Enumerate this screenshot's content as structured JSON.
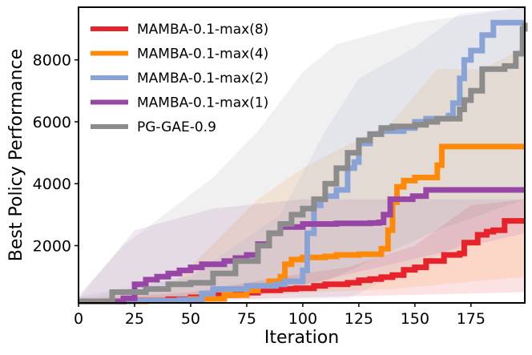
{
  "chart_data": {
    "type": "line",
    "title": "",
    "xlabel": "Iteration",
    "ylabel": "Best Policy Performance",
    "xlim": [
      0,
      199
    ],
    "ylim": [
      150,
      9700
    ],
    "xticks": [
      0,
      25,
      50,
      75,
      100,
      125,
      150,
      175
    ],
    "yticks": [
      2000,
      4000,
      6000,
      8000
    ],
    "grid": false,
    "legend": "top-left",
    "series": [
      {
        "name": "MAMBA-0.1-max(8)",
        "color": "#e6222a",
        "points": [
          [
            0,
            200
          ],
          [
            20,
            230
          ],
          [
            40,
            270
          ],
          [
            50,
            330
          ],
          [
            60,
            400
          ],
          [
            70,
            480
          ],
          [
            80,
            560
          ],
          [
            90,
            600
          ],
          [
            97,
            620
          ],
          [
            105,
            700
          ],
          [
            110,
            750
          ],
          [
            120,
            800
          ],
          [
            125,
            880
          ],
          [
            130,
            920
          ],
          [
            135,
            980
          ],
          [
            140,
            1050
          ],
          [
            145,
            1220
          ],
          [
            150,
            1300
          ],
          [
            155,
            1500
          ],
          [
            160,
            1500
          ],
          [
            163,
            1700
          ],
          [
            170,
            1750
          ],
          [
            172,
            2100
          ],
          [
            178,
            2350
          ],
          [
            182,
            2450
          ],
          [
            185,
            2500
          ],
          [
            190,
            2800
          ],
          [
            199,
            2800
          ]
        ],
        "band_upper": [
          [
            0,
            250
          ],
          [
            50,
            500
          ],
          [
            100,
            1100
          ],
          [
            120,
            1300
          ],
          [
            150,
            2000
          ],
          [
            175,
            3300
          ],
          [
            199,
            3500
          ]
        ],
        "band_lower": [
          [
            0,
            150
          ],
          [
            199,
            500
          ]
        ]
      },
      {
        "name": "MAMBA-0.1-max(4)",
        "color": "#ff8a0a",
        "points": [
          [
            0,
            200
          ],
          [
            30,
            220
          ],
          [
            50,
            280
          ],
          [
            65,
            400
          ],
          [
            75,
            550
          ],
          [
            80,
            700
          ],
          [
            85,
            850
          ],
          [
            90,
            1000
          ],
          [
            92,
            1400
          ],
          [
            95,
            1550
          ],
          [
            100,
            1620
          ],
          [
            110,
            1650
          ],
          [
            115,
            1700
          ],
          [
            125,
            1720
          ],
          [
            135,
            1900
          ],
          [
            138,
            2500
          ],
          [
            140,
            3400
          ],
          [
            142,
            3900
          ],
          [
            145,
            4100
          ],
          [
            150,
            4200
          ],
          [
            158,
            4200
          ],
          [
            160,
            4600
          ],
          [
            162,
            5200
          ],
          [
            199,
            5200
          ]
        ],
        "band_upper": [
          [
            0,
            300
          ],
          [
            40,
            600
          ],
          [
            80,
            3500
          ],
          [
            100,
            4500
          ],
          [
            140,
            6000
          ],
          [
            160,
            7700
          ],
          [
            180,
            7700
          ],
          [
            199,
            8400
          ]
        ],
        "band_lower": [
          [
            0,
            150
          ],
          [
            140,
            600
          ],
          [
            199,
            1000
          ]
        ]
      },
      {
        "name": "MAMBA-0.1-max(2)",
        "color": "#8aa3d6",
        "points": [
          [
            0,
            200
          ],
          [
            25,
            220
          ],
          [
            45,
            250
          ],
          [
            55,
            450
          ],
          [
            60,
            600
          ],
          [
            75,
            700
          ],
          [
            88,
            750
          ],
          [
            92,
            850
          ],
          [
            100,
            1200
          ],
          [
            102,
            2400
          ],
          [
            105,
            3300
          ],
          [
            108,
            3500
          ],
          [
            110,
            3600
          ],
          [
            115,
            3800
          ],
          [
            120,
            4500
          ],
          [
            123,
            4700
          ],
          [
            125,
            5300
          ],
          [
            130,
            5600
          ],
          [
            135,
            5700
          ],
          [
            145,
            5800
          ],
          [
            150,
            6000
          ],
          [
            155,
            6100
          ],
          [
            165,
            6200
          ],
          [
            167,
            6600
          ],
          [
            170,
            7400
          ],
          [
            172,
            8000
          ],
          [
            175,
            8300
          ],
          [
            180,
            8800
          ],
          [
            185,
            9200
          ],
          [
            199,
            9200
          ]
        ],
        "band_upper": [
          [
            0,
            350
          ],
          [
            50,
            1000
          ],
          [
            90,
            3000
          ],
          [
            110,
            5700
          ],
          [
            125,
            7400
          ],
          [
            150,
            8400
          ],
          [
            170,
            9500
          ],
          [
            199,
            9700
          ]
        ],
        "band_lower": [
          [
            0,
            150
          ],
          [
            120,
            300
          ],
          [
            199,
            3000
          ]
        ]
      },
      {
        "name": "MAMBA-0.1-max(1)",
        "color": "#9846a6",
        "points": [
          [
            0,
            200
          ],
          [
            20,
            300
          ],
          [
            25,
            750
          ],
          [
            30,
            900
          ],
          [
            35,
            1000
          ],
          [
            40,
            1100
          ],
          [
            45,
            1200
          ],
          [
            50,
            1300
          ],
          [
            55,
            1400
          ],
          [
            65,
            1500
          ],
          [
            70,
            1600
          ],
          [
            75,
            1700
          ],
          [
            80,
            2050
          ],
          [
            85,
            2400
          ],
          [
            90,
            2600
          ],
          [
            100,
            2700
          ],
          [
            115,
            2720
          ],
          [
            130,
            2730
          ],
          [
            134,
            2750
          ],
          [
            136,
            3000
          ],
          [
            139,
            3500
          ],
          [
            145,
            3500
          ],
          [
            149,
            3600
          ],
          [
            155,
            3800
          ],
          [
            199,
            3800
          ]
        ],
        "band_upper": [
          [
            0,
            300
          ],
          [
            25,
            2500
          ],
          [
            60,
            3200
          ],
          [
            100,
            3500
          ],
          [
            199,
            3500
          ]
        ],
        "band_lower": [
          [
            0,
            150
          ],
          [
            80,
            400
          ],
          [
            199,
            2400
          ]
        ]
      },
      {
        "name": "PG-GAE-0.9",
        "color": "#8c8c8c",
        "points": [
          [
            0,
            200
          ],
          [
            15,
            500
          ],
          [
            30,
            600
          ],
          [
            40,
            750
          ],
          [
            50,
            800
          ],
          [
            60,
            1100
          ],
          [
            70,
            1500
          ],
          [
            80,
            2000
          ],
          [
            85,
            2400
          ],
          [
            90,
            2700
          ],
          [
            95,
            3000
          ],
          [
            100,
            3200
          ],
          [
            105,
            3500
          ],
          [
            110,
            4000
          ],
          [
            115,
            4500
          ],
          [
            120,
            5000
          ],
          [
            125,
            5400
          ],
          [
            130,
            5600
          ],
          [
            135,
            5800
          ],
          [
            140,
            5850
          ],
          [
            150,
            5900
          ],
          [
            155,
            6000
          ],
          [
            160,
            6100
          ],
          [
            170,
            6400
          ],
          [
            172,
            6700
          ],
          [
            175,
            7000
          ],
          [
            180,
            7700
          ],
          [
            190,
            7800
          ],
          [
            195,
            8200
          ],
          [
            198,
            9000
          ],
          [
            199,
            9200
          ]
        ],
        "band_upper": [
          [
            0,
            400
          ],
          [
            20,
            2000
          ],
          [
            60,
            4200
          ],
          [
            80,
            5700
          ],
          [
            100,
            7600
          ],
          [
            115,
            8500
          ],
          [
            150,
            9200
          ],
          [
            199,
            9700
          ]
        ],
        "band_lower": [
          [
            0,
            150
          ],
          [
            100,
            500
          ],
          [
            160,
            2500
          ],
          [
            199,
            3500
          ]
        ]
      }
    ]
  }
}
